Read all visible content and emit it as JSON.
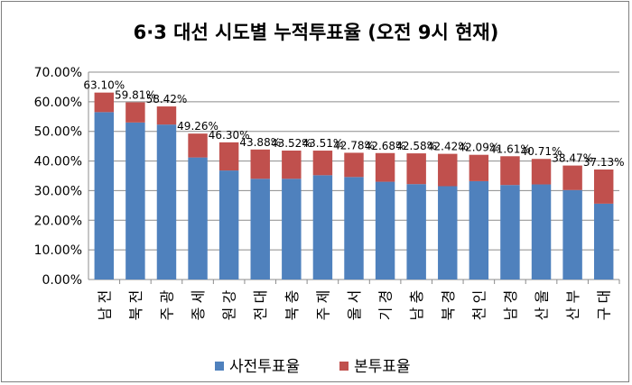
{
  "chart_data": {
    "type": "bar",
    "stacked": true,
    "title": "6·3 대선 시도별 누적투표율 (오전 9시 현재)",
    "categories": [
      "전남",
      "전북",
      "광주",
      "세종",
      "강원",
      "대전",
      "충북",
      "제주",
      "서울",
      "경기",
      "충남",
      "경북",
      "인천",
      "경남",
      "울산",
      "부산",
      "대구"
    ],
    "series": [
      {
        "name": "사전투표율",
        "color": "#4f81bd",
        "values": [
          56.5,
          53.0,
          52.3,
          41.2,
          36.8,
          34.0,
          34.0,
          35.2,
          34.6,
          33.0,
          32.2,
          31.5,
          33.2,
          31.9,
          32.1,
          30.2,
          25.6
        ]
      },
      {
        "name": "본투표율",
        "color": "#c0504d",
        "values": [
          6.6,
          6.81,
          6.12,
          8.06,
          9.5,
          9.88,
          9.52,
          8.31,
          8.18,
          9.68,
          10.38,
          10.92,
          8.89,
          9.71,
          8.61,
          8.27,
          11.53
        ]
      }
    ],
    "total_labels": [
      "63.10%",
      "59.81%",
      "58.42%",
      "49.26%",
      "46.30%",
      "43.88%",
      "43.52%",
      "43.51%",
      "42.78%",
      "42.68%",
      "42.58%",
      "42.42%",
      "42.09%",
      "41.61%",
      "40.71%",
      "38.47%",
      "37.13%"
    ],
    "ylim": [
      0,
      70
    ],
    "y_ticks": [
      "0.00%",
      "10.00%",
      "20.00%",
      "30.00%",
      "40.00%",
      "50.00%",
      "60.00%",
      "70.00%"
    ],
    "grid": true,
    "legend_position": "bottom"
  }
}
